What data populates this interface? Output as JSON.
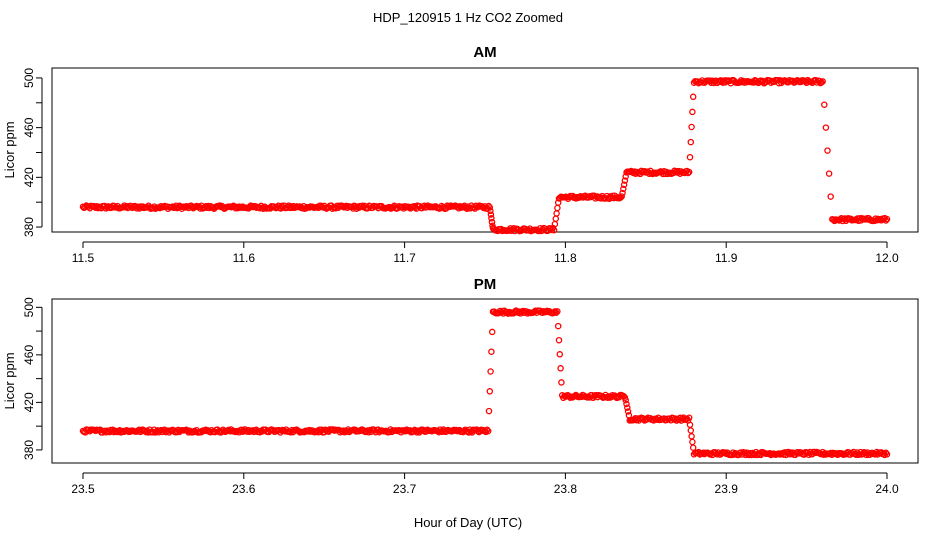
{
  "figure": {
    "title": "HDP_120915  1 Hz CO2 Zoomed",
    "xlabel": "Hour of Day (UTC)",
    "marker_color": "#ff0000"
  },
  "chart_data": [
    {
      "type": "scatter",
      "title": "AM",
      "xlabel": "",
      "ylabel": "Licor ppm",
      "xlim": [
        11.5,
        12.0
      ],
      "ylim": [
        376,
        508
      ],
      "xticks": [
        "11.5",
        "11.6",
        "11.7",
        "11.8",
        "11.9",
        "12.0"
      ],
      "yticks": [
        "380",
        "420",
        "460",
        "500"
      ],
      "grid": false,
      "segments": [
        {
          "x": [
            11.5,
            11.753
          ],
          "y": 396
        },
        {
          "x": [
            11.755,
            11.793
          ],
          "y": 378
        },
        {
          "x": [
            11.796,
            11.835
          ],
          "y": 404
        },
        {
          "x": [
            11.838,
            11.877
          ],
          "y": 424
        },
        {
          "x": [
            11.88,
            11.96
          ],
          "y": 497
        },
        {
          "x": [
            11.966,
            12.0
          ],
          "y": 386
        }
      ],
      "transitions": [
        {
          "x": [
            11.753,
            11.755
          ],
          "y": [
            396,
            378
          ]
        },
        {
          "x": [
            11.793,
            11.796
          ],
          "y": [
            378,
            404
          ]
        },
        {
          "x": [
            11.835,
            11.838
          ],
          "y": [
            404,
            424
          ]
        },
        {
          "x": [
            11.877,
            11.88
          ],
          "y": [
            424,
            497
          ]
        },
        {
          "x": [
            11.96,
            11.966
          ],
          "y": [
            497,
            386
          ]
        }
      ]
    },
    {
      "type": "scatter",
      "title": "PM",
      "xlabel": "",
      "ylabel": "Licor ppm",
      "xlim": [
        23.5,
        24.0
      ],
      "ylim": [
        369,
        507
      ],
      "xticks": [
        "23.5",
        "23.6",
        "23.7",
        "23.8",
        "23.9",
        "24.0"
      ],
      "yticks": [
        "380",
        "420",
        "460",
        "500"
      ],
      "grid": false,
      "segments": [
        {
          "x": [
            23.5,
            23.752
          ],
          "y": 396
        },
        {
          "x": [
            23.755,
            23.795
          ],
          "y": 496
        },
        {
          "x": [
            23.798,
            23.837
          ],
          "y": 425
        },
        {
          "x": [
            23.84,
            23.877
          ],
          "y": 406
        },
        {
          "x": [
            23.88,
            24.0
          ],
          "y": 377
        }
      ],
      "transitions": [
        {
          "x": [
            23.752,
            23.755
          ],
          "y": [
            396,
            496
          ]
        },
        {
          "x": [
            23.795,
            23.798
          ],
          "y": [
            496,
            425
          ]
        },
        {
          "x": [
            23.837,
            23.84
          ],
          "y": [
            425,
            406
          ]
        },
        {
          "x": [
            23.877,
            23.88
          ],
          "y": [
            406,
            377
          ]
        }
      ]
    }
  ]
}
